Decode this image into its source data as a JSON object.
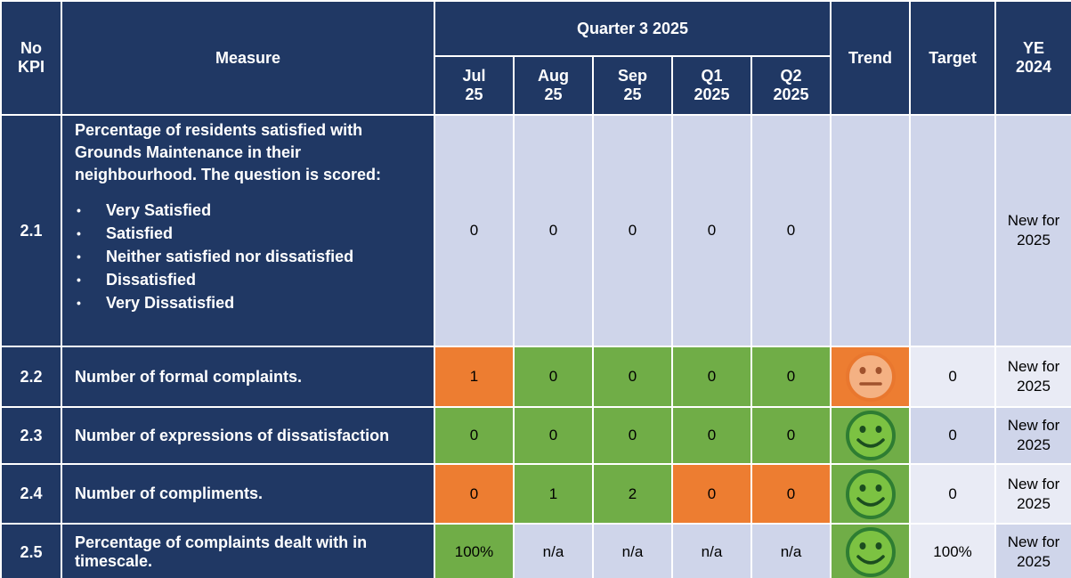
{
  "header": {
    "no_kpi": "No KPI",
    "measure": "Measure",
    "quarter": "Quarter 3 2025",
    "periods": [
      "Jul 25",
      "Aug 25",
      "Sep 25",
      "Q1 2025",
      "Q2 2025"
    ],
    "trend": "Trend",
    "target": "Target",
    "ye": "YE 2024"
  },
  "rows": [
    {
      "id": "2.1",
      "measure": "Percentage of residents satisfied with Grounds Maintenance in their neighbourhood. The question is scored:",
      "bullets": [
        "Very Satisfied",
        "Satisfied",
        "Neither satisfied nor dissatisfied",
        "Dissatisfied",
        "Very Dissatisfied"
      ],
      "cells": [
        {
          "value": 0,
          "color": "#cfd5ea"
        },
        {
          "value": 0,
          "color": "#cfd5ea"
        },
        {
          "value": 0,
          "color": "#cfd5ea"
        },
        {
          "value": 0,
          "color": "#cfd5ea"
        },
        {
          "value": 0,
          "color": "#cfd5ea"
        }
      ],
      "trend": {
        "face": null,
        "color": "#cfd5ea"
      },
      "target": {
        "value": null,
        "color": "#cfd5ea"
      },
      "ye": {
        "value": "New for 2025",
        "color": "#cfd5ea"
      }
    },
    {
      "id": "2.2",
      "measure": "Number of formal complaints.",
      "cells": [
        {
          "value": 1,
          "color": "#ed7d31"
        },
        {
          "value": 0,
          "color": "#70ad47"
        },
        {
          "value": 0,
          "color": "#70ad47"
        },
        {
          "value": 0,
          "color": "#70ad47"
        },
        {
          "value": 0,
          "color": "#70ad47"
        }
      ],
      "trend": {
        "face": "neutral",
        "color": "#ed7d31"
      },
      "target": {
        "value": 0,
        "color": "#e9ebf5"
      },
      "ye": {
        "value": "New for 2025",
        "color": "#e9ebf5"
      }
    },
    {
      "id": "2.3",
      "measure": "Number of expressions of dissatisfaction",
      "cells": [
        {
          "value": 0,
          "color": "#70ad47"
        },
        {
          "value": 0,
          "color": "#70ad47"
        },
        {
          "value": 0,
          "color": "#70ad47"
        },
        {
          "value": 0,
          "color": "#70ad47"
        },
        {
          "value": 0,
          "color": "#70ad47"
        }
      ],
      "trend": {
        "face": "smile",
        "color": "#70ad47"
      },
      "target": {
        "value": 0,
        "color": "#cfd5ea"
      },
      "ye": {
        "value": "New for 2025",
        "color": "#cfd5ea"
      }
    },
    {
      "id": "2.4",
      "measure": "Number of compliments.",
      "cells": [
        {
          "value": 0,
          "color": "#ed7d31"
        },
        {
          "value": 1,
          "color": "#70ad47"
        },
        {
          "value": 2,
          "color": "#70ad47"
        },
        {
          "value": 0,
          "color": "#ed7d31"
        },
        {
          "value": 0,
          "color": "#ed7d31"
        }
      ],
      "trend": {
        "face": "smile",
        "color": "#70ad47"
      },
      "target": {
        "value": 0,
        "color": "#e9ebf5"
      },
      "ye": {
        "value": "New for 2025",
        "color": "#e9ebf5"
      }
    },
    {
      "id": "2.5",
      "measure": "Percentage of complaints dealt with in timescale.",
      "cells": [
        {
          "value": "100%",
          "color": "#70ad47"
        },
        {
          "value": "n/a",
          "color": "#cfd5ea"
        },
        {
          "value": "n/a",
          "color": "#cfd5ea"
        },
        {
          "value": "n/a",
          "color": "#cfd5ea"
        },
        {
          "value": "n/a",
          "color": "#cfd5ea"
        }
      ],
      "trend": {
        "face": "smile",
        "color": "#70ad47"
      },
      "target": {
        "value": "100%",
        "color": "#e9ebf5"
      },
      "ye": {
        "value": "New for 2025",
        "color": "#cfd5ea"
      }
    }
  ]
}
